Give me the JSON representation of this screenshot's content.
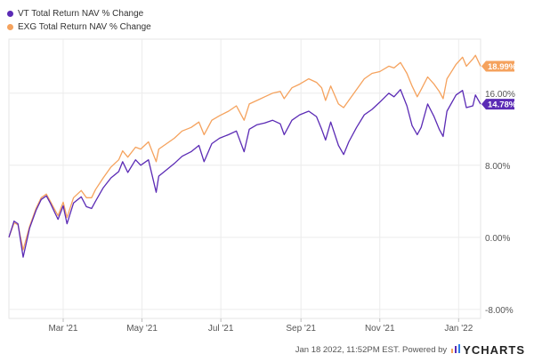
{
  "chart_data": {
    "type": "line",
    "title": "",
    "xlabel": "",
    "ylabel": "",
    "x_range": [
      "2021-01-18",
      "2022-01-18"
    ],
    "ylim": [
      -9,
      22
    ],
    "y_ticks": [
      -8,
      0,
      8,
      16
    ],
    "y_tick_labels": [
      "-8.00%",
      "0.00%",
      "8.00%",
      "16.00%"
    ],
    "x_ticks": [
      {
        "date": "2021-03-01",
        "label": "Mar '21"
      },
      {
        "date": "2021-05-01",
        "label": "May '21"
      },
      {
        "date": "2021-07-01",
        "label": "Jul '21"
      },
      {
        "date": "2021-09-01",
        "label": "Sep '21"
      },
      {
        "date": "2021-11-01",
        "label": "Nov '21"
      },
      {
        "date": "2022-01-01",
        "label": "Jan '22"
      }
    ],
    "grid": true,
    "legend_position": "top-left",
    "series": [
      {
        "name": "VT Total Return NAV % Change",
        "color": "#5b2bb5",
        "end_label": "14.78%",
        "points": [
          [
            "2021-01-18",
            0.0
          ],
          [
            "2021-01-22",
            1.8
          ],
          [
            "2021-01-25",
            1.5
          ],
          [
            "2021-01-29",
            -2.2
          ],
          [
            "2021-02-03",
            1.0
          ],
          [
            "2021-02-08",
            3.0
          ],
          [
            "2021-02-12",
            4.2
          ],
          [
            "2021-02-16",
            4.6
          ],
          [
            "2021-02-19",
            3.8
          ],
          [
            "2021-02-25",
            2.0
          ],
          [
            "2021-03-01",
            3.5
          ],
          [
            "2021-03-04",
            1.5
          ],
          [
            "2021-03-09",
            3.8
          ],
          [
            "2021-03-15",
            4.5
          ],
          [
            "2021-03-19",
            3.4
          ],
          [
            "2021-03-23",
            3.2
          ],
          [
            "2021-03-26",
            4.0
          ],
          [
            "2021-04-01",
            5.5
          ],
          [
            "2021-04-07",
            6.6
          ],
          [
            "2021-04-13",
            7.3
          ],
          [
            "2021-04-16",
            8.4
          ],
          [
            "2021-04-20",
            7.2
          ],
          [
            "2021-04-26",
            8.6
          ],
          [
            "2021-04-30",
            8.0
          ],
          [
            "2021-05-06",
            8.6
          ],
          [
            "2021-05-12",
            5.0
          ],
          [
            "2021-05-14",
            6.8
          ],
          [
            "2021-05-20",
            7.5
          ],
          [
            "2021-05-26",
            8.2
          ],
          [
            "2021-06-01",
            9.0
          ],
          [
            "2021-06-08",
            9.5
          ],
          [
            "2021-06-14",
            10.2
          ],
          [
            "2021-06-18",
            8.4
          ],
          [
            "2021-06-24",
            10.4
          ],
          [
            "2021-06-30",
            11.0
          ],
          [
            "2021-07-07",
            11.4
          ],
          [
            "2021-07-13",
            11.8
          ],
          [
            "2021-07-19",
            9.5
          ],
          [
            "2021-07-23",
            12.0
          ],
          [
            "2021-07-29",
            12.5
          ],
          [
            "2021-08-04",
            12.7
          ],
          [
            "2021-08-10",
            13.0
          ],
          [
            "2021-08-16",
            12.6
          ],
          [
            "2021-08-19",
            11.4
          ],
          [
            "2021-08-25",
            13.0
          ],
          [
            "2021-08-31",
            13.6
          ],
          [
            "2021-09-07",
            14.0
          ],
          [
            "2021-09-13",
            13.4
          ],
          [
            "2021-09-17",
            12.0
          ],
          [
            "2021-09-20",
            10.8
          ],
          [
            "2021-09-24",
            12.8
          ],
          [
            "2021-09-30",
            10.2
          ],
          [
            "2021-10-04",
            9.2
          ],
          [
            "2021-10-08",
            10.6
          ],
          [
            "2021-10-14",
            12.2
          ],
          [
            "2021-10-20",
            13.6
          ],
          [
            "2021-10-26",
            14.2
          ],
          [
            "2021-11-01",
            15.0
          ],
          [
            "2021-11-08",
            16.0
          ],
          [
            "2021-11-12",
            15.6
          ],
          [
            "2021-11-17",
            16.4
          ],
          [
            "2021-11-22",
            14.6
          ],
          [
            "2021-11-26",
            12.4
          ],
          [
            "2021-11-30",
            11.4
          ],
          [
            "2021-12-03",
            12.2
          ],
          [
            "2021-12-08",
            14.8
          ],
          [
            "2021-12-13",
            13.4
          ],
          [
            "2021-12-17",
            12.0
          ],
          [
            "2021-12-20",
            11.2
          ],
          [
            "2021-12-23",
            14.0
          ],
          [
            "2021-12-30",
            15.8
          ],
          [
            "2022-01-04",
            16.3
          ],
          [
            "2022-01-07",
            14.4
          ],
          [
            "2022-01-12",
            14.6
          ],
          [
            "2022-01-14",
            15.8
          ],
          [
            "2022-01-18",
            14.78
          ]
        ]
      },
      {
        "name": "EXG Total Return NAV % Change",
        "color": "#f5a25d",
        "end_label": "18.99%",
        "points": [
          [
            "2021-01-18",
            0.0
          ],
          [
            "2021-01-22",
            1.6
          ],
          [
            "2021-01-25",
            1.4
          ],
          [
            "2021-01-29",
            -1.4
          ],
          [
            "2021-02-03",
            1.2
          ],
          [
            "2021-02-08",
            3.2
          ],
          [
            "2021-02-12",
            4.4
          ],
          [
            "2021-02-16",
            4.8
          ],
          [
            "2021-02-19",
            4.0
          ],
          [
            "2021-02-25",
            2.4
          ],
          [
            "2021-03-01",
            3.9
          ],
          [
            "2021-03-04",
            2.2
          ],
          [
            "2021-03-09",
            4.4
          ],
          [
            "2021-03-15",
            5.2
          ],
          [
            "2021-03-19",
            4.4
          ],
          [
            "2021-03-23",
            4.4
          ],
          [
            "2021-03-26",
            5.3
          ],
          [
            "2021-04-01",
            6.6
          ],
          [
            "2021-04-07",
            7.8
          ],
          [
            "2021-04-13",
            8.6
          ],
          [
            "2021-04-16",
            9.6
          ],
          [
            "2021-04-20",
            8.9
          ],
          [
            "2021-04-26",
            10.0
          ],
          [
            "2021-04-30",
            9.8
          ],
          [
            "2021-05-06",
            10.6
          ],
          [
            "2021-05-12",
            8.4
          ],
          [
            "2021-05-14",
            9.8
          ],
          [
            "2021-05-20",
            10.4
          ],
          [
            "2021-05-26",
            11.0
          ],
          [
            "2021-06-01",
            11.8
          ],
          [
            "2021-06-08",
            12.2
          ],
          [
            "2021-06-14",
            12.8
          ],
          [
            "2021-06-18",
            11.4
          ],
          [
            "2021-06-24",
            13.0
          ],
          [
            "2021-06-30",
            13.5
          ],
          [
            "2021-07-07",
            14.0
          ],
          [
            "2021-07-13",
            14.6
          ],
          [
            "2021-07-19",
            13.0
          ],
          [
            "2021-07-23",
            14.8
          ],
          [
            "2021-07-29",
            15.2
          ],
          [
            "2021-08-04",
            15.6
          ],
          [
            "2021-08-10",
            16.0
          ],
          [
            "2021-08-16",
            16.2
          ],
          [
            "2021-08-19",
            15.4
          ],
          [
            "2021-08-25",
            16.6
          ],
          [
            "2021-08-31",
            17.0
          ],
          [
            "2021-09-07",
            17.6
          ],
          [
            "2021-09-13",
            17.2
          ],
          [
            "2021-09-17",
            16.6
          ],
          [
            "2021-09-20",
            15.2
          ],
          [
            "2021-09-24",
            16.8
          ],
          [
            "2021-09-30",
            14.8
          ],
          [
            "2021-10-04",
            14.4
          ],
          [
            "2021-10-08",
            15.2
          ],
          [
            "2021-10-14",
            16.4
          ],
          [
            "2021-10-20",
            17.6
          ],
          [
            "2021-10-26",
            18.2
          ],
          [
            "2021-11-01",
            18.4
          ],
          [
            "2021-11-08",
            19.0
          ],
          [
            "2021-11-12",
            18.8
          ],
          [
            "2021-11-17",
            19.4
          ],
          [
            "2021-11-22",
            18.2
          ],
          [
            "2021-11-26",
            16.8
          ],
          [
            "2021-11-30",
            15.6
          ],
          [
            "2021-12-03",
            16.4
          ],
          [
            "2021-12-08",
            17.8
          ],
          [
            "2021-12-13",
            17.0
          ],
          [
            "2021-12-17",
            16.2
          ],
          [
            "2021-12-20",
            15.4
          ],
          [
            "2021-12-23",
            17.6
          ],
          [
            "2021-12-30",
            19.2
          ],
          [
            "2022-01-04",
            20.0
          ],
          [
            "2022-01-07",
            19.0
          ],
          [
            "2022-01-12",
            19.8
          ],
          [
            "2022-01-14",
            20.2
          ],
          [
            "2022-01-18",
            18.99
          ]
        ]
      }
    ]
  },
  "footer": {
    "timestamp": "Jan 18 2022, 11:52PM EST.",
    "powered_by": "Powered by",
    "brand": "YCHARTS",
    "brand_icon": "ycharts-bars-icon"
  }
}
